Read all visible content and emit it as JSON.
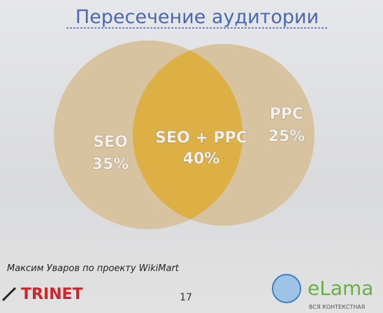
{
  "title": "Пересечение аудитории",
  "regions": [
    {
      "label": "SEO",
      "value": "35%"
    },
    {
      "label": "SEO + PPC",
      "value": "40%"
    },
    {
      "label": "PPC",
      "value": "25%"
    }
  ],
  "footer": {
    "author": "Максим Уваров по проекту WikiMart",
    "page": "17",
    "logo_left": "TRINET",
    "logo_right": "eLama",
    "logo_right_tagline": "ВСЯ КОНТЕКСТНАЯ"
  }
}
